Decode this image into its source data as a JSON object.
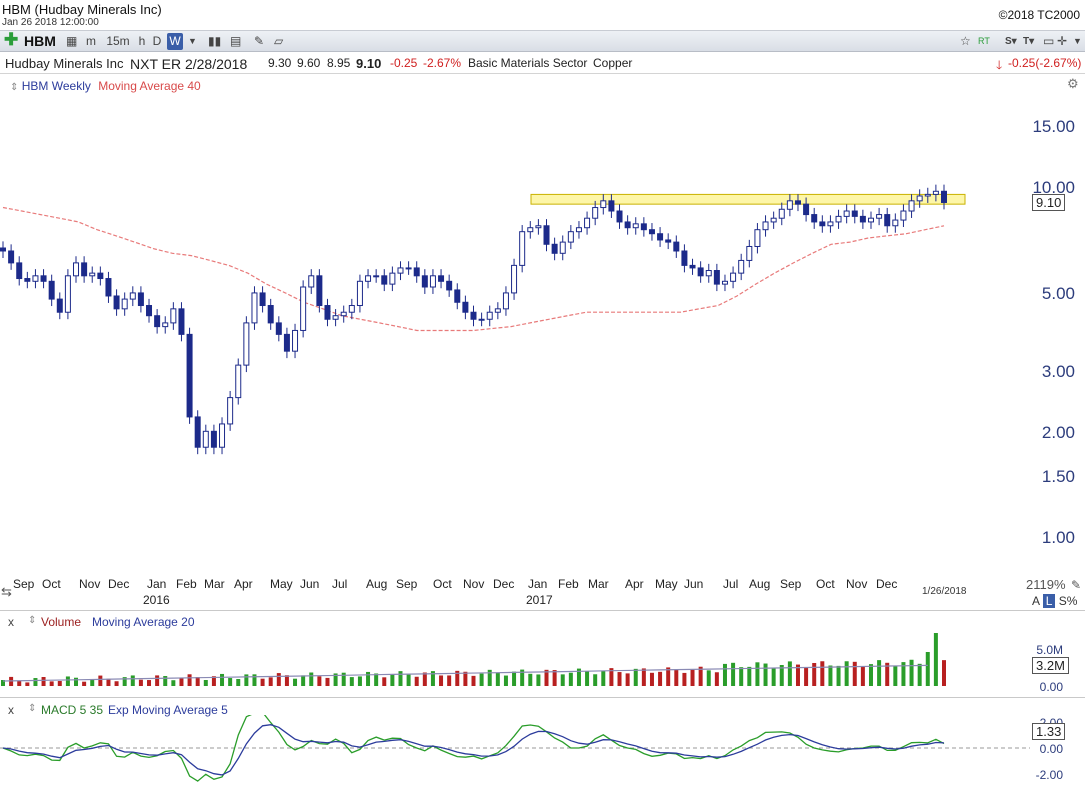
{
  "window": {
    "title": "HBM (Hudbay Minerals Inc)",
    "timestamp": "Jan 26 2018 12:00:00",
    "copyright": "©2018 TC2000"
  },
  "toolbar": {
    "symbol": "HBM",
    "intervals": [
      "m",
      "15m",
      "h",
      "D",
      "W"
    ],
    "selected_interval": "W",
    "net_change_header": "-0.25(-2.67%)"
  },
  "info": {
    "company": "Hudbay Minerals Inc",
    "next_earnings": "NXT ER 2/28/2018",
    "open": "9.30",
    "high": "9.60",
    "low": "8.95",
    "last": "9.10",
    "change": "-0.25",
    "change_pct": "-2.67%",
    "sector": "Basic Materials Sector",
    "industry": "Copper"
  },
  "price_pane": {
    "legend_series": "HBM Weekly",
    "legend_ma": "Moving Average 40",
    "y_ticks": [
      "15.00",
      "10.00",
      "5.00",
      "3.00",
      "2.00",
      "1.50",
      "1.00"
    ],
    "last_label": "9.10",
    "x_months": [
      "Sep",
      "Oct",
      "Nov",
      "Dec",
      "Jan",
      "Feb",
      "Mar",
      "Apr",
      "May",
      "Jun",
      "Jul",
      "Aug",
      "Sep",
      "Oct",
      "Nov",
      "Dec",
      "Jan",
      "Feb",
      "Mar",
      "Apr",
      "May",
      "Jun",
      "Jul",
      "Aug",
      "Sep",
      "Oct",
      "Nov",
      "Dec"
    ],
    "x_years": [
      "2016",
      "2017"
    ],
    "end_date": "1/26/2018",
    "scale_pct": "2119%",
    "scale_ctrl": [
      "A",
      "L",
      "S%"
    ]
  },
  "volume_pane": {
    "name": "Volume",
    "ma_name": "Moving Average 20",
    "ticks": [
      "5.0M",
      "0.00"
    ],
    "last_label": "3.2M"
  },
  "macd_pane": {
    "name": "MACD 5 35",
    "ma_name": "Exp Moving Average 5",
    "ticks": [
      "2.00",
      "0.00",
      "-2.00"
    ],
    "last_label": "1.33"
  },
  "colors": {
    "up": "#2a9d2a",
    "down": "#b82020",
    "candle": "#1c2a8a",
    "ma": "#e87a7a",
    "highlight": "#fdf6a8"
  },
  "chart_data": {
    "type": "candlestick",
    "interval": "weekly",
    "scale": "log",
    "ylim": [
      0.9,
      17
    ],
    "price_approx": [
      6.6,
      6.1,
      5.5,
      5.4,
      5.6,
      5.4,
      4.8,
      4.4,
      5.6,
      6.1,
      5.6,
      5.7,
      5.5,
      4.9,
      4.5,
      4.8,
      5.0,
      4.6,
      4.3,
      4.0,
      4.1,
      4.5,
      3.8,
      2.2,
      1.8,
      2.0,
      1.8,
      2.1,
      2.5,
      3.1,
      4.1,
      5.0,
      4.6,
      4.1,
      3.8,
      3.4,
      3.9,
      5.2,
      5.6,
      4.6,
      4.2,
      4.3,
      4.4,
      4.6,
      5.4,
      5.6,
      5.6,
      5.3,
      5.7,
      5.9,
      5.9,
      5.6,
      5.2,
      5.6,
      5.4,
      5.1,
      4.7,
      4.4,
      4.2,
      4.2,
      4.4,
      4.5,
      5.0,
      6.0,
      7.5,
      7.7,
      7.8,
      6.9,
      6.5,
      7.0,
      7.5,
      7.7,
      8.2,
      8.8,
      9.2,
      8.6,
      8.0,
      7.7,
      7.9,
      7.6,
      7.4,
      7.1,
      7.0,
      6.6,
      6.0,
      5.9,
      5.6,
      5.8,
      5.3,
      5.4,
      5.7,
      6.2,
      6.8,
      7.6,
      8.0,
      8.2,
      8.7,
      9.2,
      9.0,
      8.4,
      8.0,
      7.8,
      8.0,
      8.3,
      8.6,
      8.3,
      8.0,
      8.2,
      8.4,
      7.8,
      8.1,
      8.6,
      9.2,
      9.5,
      9.6,
      9.8,
      9.1
    ],
    "ma40_approx": [
      8.8,
      8.6,
      8.4,
      8.2,
      8.0,
      7.6,
      7.3,
      7.0,
      6.7,
      6.5,
      6.4,
      6.2,
      6.0,
      5.7,
      5.3,
      5.0,
      4.7,
      4.5,
      4.3,
      4.2,
      4.1,
      4.0,
      3.9,
      3.9,
      3.9,
      3.9,
      3.95,
      4.0,
      4.1,
      4.2,
      4.3,
      4.4,
      4.4,
      4.4,
      4.4,
      4.4,
      4.4,
      4.5,
      4.6,
      4.9,
      5.3,
      5.7,
      6.1,
      6.5,
      6.9,
      7.0,
      7.2,
      7.3,
      7.4,
      7.6,
      7.8
    ],
    "resistance_band": [
      9.0,
      9.6
    ],
    "volume_axis": {
      "max_label": "5.0M"
    },
    "macd_axis": {
      "ticks": [
        2.0,
        0.0,
        -2.0
      ]
    }
  }
}
